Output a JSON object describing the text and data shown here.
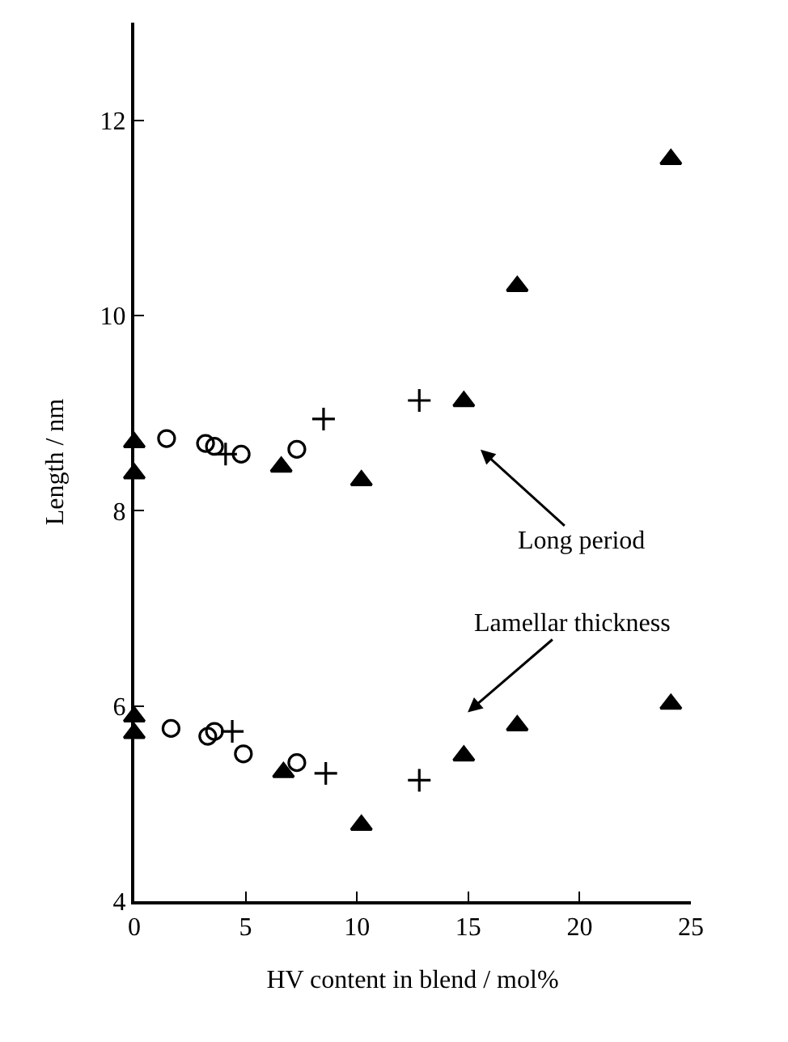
{
  "chart_data": {
    "type": "scatter",
    "xlabel": "HV content in blend / mol%",
    "ylabel": "Length / nm",
    "xlim": [
      0,
      25
    ],
    "xticks": [
      0,
      5,
      10,
      15,
      20,
      25
    ],
    "ylim": [
      4,
      13
    ],
    "yticks": [
      4,
      6,
      8,
      10,
      12
    ],
    "grid": false,
    "series": [
      {
        "color": "#000000",
        "marker": "triangle",
        "x": [
          0,
          0,
          6.6,
          10.2,
          14.8,
          17.2,
          24.1,
          0,
          0,
          6.7,
          10.2,
          14.8,
          17.2,
          24.1
        ],
        "values": [
          8.7,
          8.38,
          8.45,
          8.31,
          9.12,
          10.3,
          11.6,
          5.89,
          5.72,
          5.32,
          4.78,
          5.49,
          5.8,
          6.02
        ]
      },
      {
        "color": "#000000",
        "marker": "circle",
        "x": [
          1.45,
          3.2,
          3.6,
          4.8,
          7.3,
          1.65,
          3.3,
          3.6,
          4.9,
          7.3
        ],
        "values": [
          8.74,
          8.69,
          8.66,
          8.58,
          8.63,
          5.77,
          5.69,
          5.74,
          5.51,
          5.42
        ]
      },
      {
        "color": "#000000",
        "marker": "cross",
        "x": [
          4.1,
          8.5,
          12.8,
          4.4,
          8.6,
          12.8
        ],
        "values": [
          8.58,
          8.94,
          9.13,
          5.74,
          5.31,
          5.24
        ]
      }
    ],
    "annotations": [
      "Long period",
      "Lamellar thickness"
    ]
  }
}
